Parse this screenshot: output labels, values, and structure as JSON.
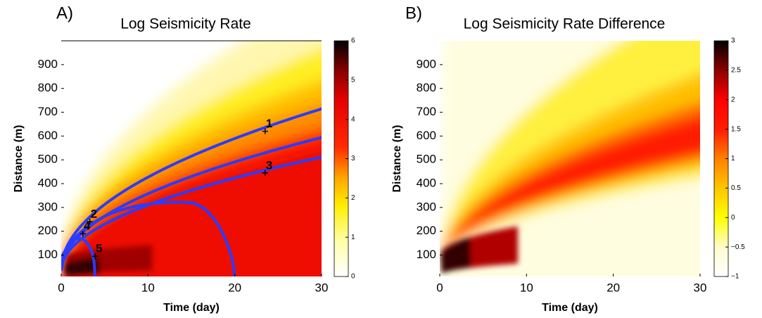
{
  "chart_data": [
    {
      "type": "heatmap",
      "panel_label": "A)",
      "title": "Log Seismicity Rate",
      "xlabel": "Time (day)",
      "ylabel": "Distance  (m)",
      "xlim": [
        0,
        30
      ],
      "xticks": [
        0,
        10,
        20,
        30
      ],
      "ylim": [
        10,
        1000
      ],
      "yticks": [
        100,
        200,
        300,
        400,
        500,
        600,
        700,
        800,
        900
      ],
      "clim": [
        0,
        6
      ],
      "cticks": [
        0,
        1,
        2,
        3,
        4,
        5,
        6
      ],
      "points": {
        "labels": [
          "1",
          "2",
          "3",
          "4",
          "5"
        ],
        "x": [
          23.5,
          3.3,
          23.5,
          2.5,
          3.9
        ],
        "y": [
          620,
          240,
          445,
          190,
          95
        ]
      }
    },
    {
      "type": "heatmap",
      "panel_label": "B)",
      "title": "Log Seismicity Rate Difference",
      "xlabel": "Time (day)",
      "ylabel": "Distance  (m)",
      "xlim": [
        0,
        30
      ],
      "xticks": [
        0,
        10,
        20,
        30
      ],
      "ylim": [
        10,
        1000
      ],
      "yticks": [
        100,
        200,
        300,
        400,
        500,
        600,
        700,
        800,
        900
      ],
      "clim": [
        -1,
        3
      ],
      "cticks": [
        {
          "value": -1,
          "label": "−1"
        },
        {
          "value": -0.5,
          "label": "−0.5"
        },
        0,
        0.5,
        1,
        1.5,
        2,
        2.5,
        3
      ]
    }
  ]
}
